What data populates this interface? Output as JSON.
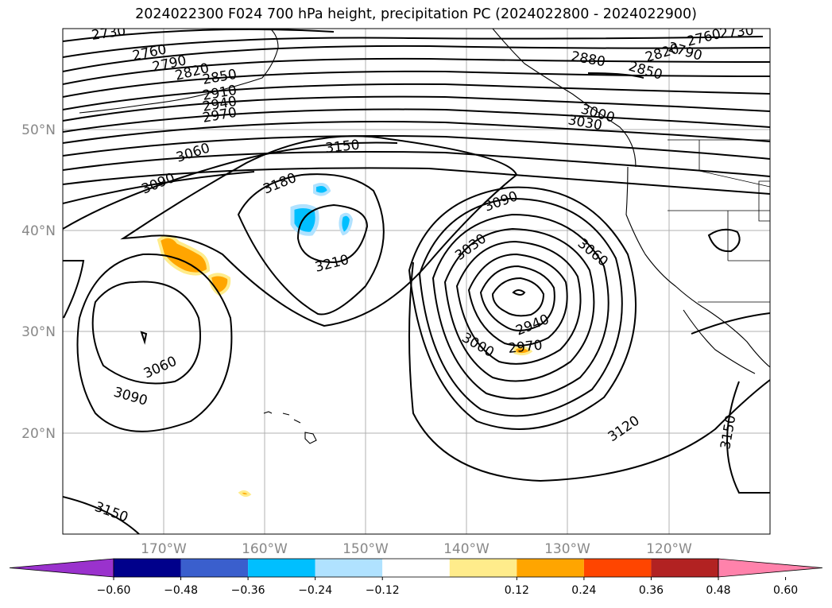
{
  "title": "2024022300 F024 700 hPa height, precipitation PC (2024022800 - 2024022900)",
  "map": {
    "longitude_labels": [
      "170°W",
      "160°W",
      "150°W",
      "140°W",
      "130°W",
      "120°W"
    ],
    "latitude_labels": [
      "50°N",
      "40°N",
      "30°N",
      "20°N"
    ],
    "contour_labels": [
      "2730",
      "2760",
      "2790",
      "2820",
      "2850",
      "2910",
      "2940",
      "2970",
      "3060",
      "3090",
      "3150",
      "3180",
      "3210",
      "3090",
      "3030",
      "3060",
      "2940",
      "2970",
      "3000",
      "3060",
      "3090",
      "3150",
      "3120",
      "3150",
      "2880",
      "2850",
      "2820",
      "2790",
      "2760",
      "2730",
      "3000",
      "3030"
    ],
    "colors": {
      "land_lines": "#000000",
      "grid": "#b0b0b0",
      "contour": "#000000"
    }
  },
  "colorbar": {
    "labels": [
      "−0.60",
      "−0.48",
      "−0.36",
      "−0.24",
      "−0.12",
      "0.12",
      "0.24",
      "0.36",
      "0.48",
      "0.60"
    ],
    "colors": [
      "#9a32cd",
      "#00008b",
      "#3a5fcd",
      "#00bfff",
      "#b0e2ff",
      "#ffffff",
      "#ffec8b",
      "#ffa500",
      "#ff4500",
      "#b22222",
      "#ff82ab"
    ]
  }
}
